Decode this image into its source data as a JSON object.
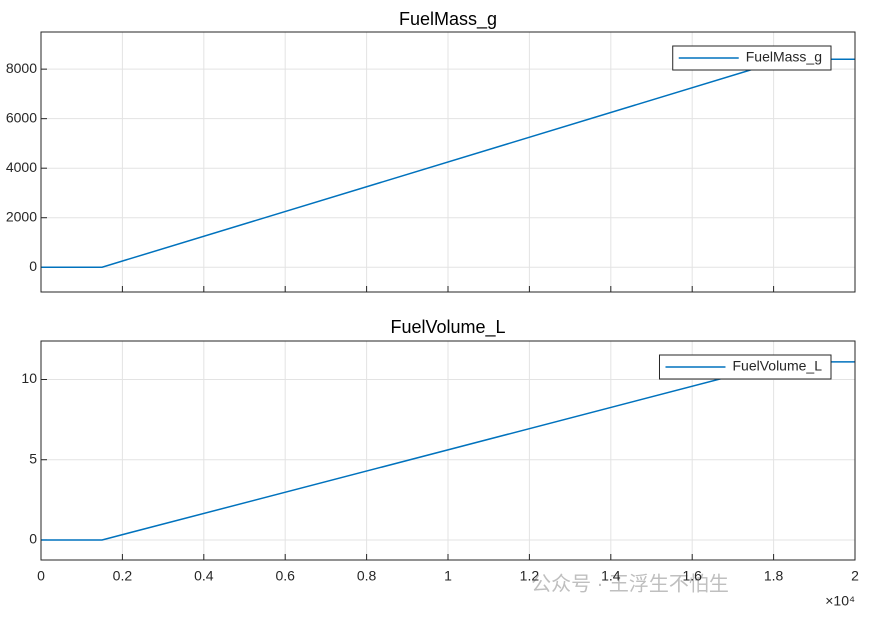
{
  "chart_data": [
    {
      "type": "line",
      "title": "FuelMass_g",
      "x": [
        0,
        0.15,
        1.83,
        2
      ],
      "series": [
        {
          "name": "FuelMass_g",
          "color": "#0072bd",
          "values": [
            0,
            0,
            8400,
            8400
          ]
        }
      ],
      "xlim": [
        0,
        2
      ],
      "xticks": [
        0,
        0.2,
        0.4,
        0.6,
        0.8,
        1,
        1.2,
        1.4,
        1.6,
        1.8,
        2
      ],
      "ylim": [
        -1000,
        9500
      ],
      "yticks": [
        0,
        2000,
        4000,
        6000,
        8000
      ],
      "grid": true,
      "legend": "northeast"
    },
    {
      "type": "line",
      "title": "FuelVolume_L",
      "x": [
        0,
        0.15,
        1.83,
        2
      ],
      "series": [
        {
          "name": "FuelVolume_L",
          "color": "#0072bd",
          "values": [
            0,
            0,
            11.1,
            11.1
          ]
        }
      ],
      "xlim": [
        0,
        2
      ],
      "xticks": [
        0,
        0.2,
        0.4,
        0.6,
        0.8,
        1,
        1.2,
        1.4,
        1.6,
        1.8,
        2
      ],
      "x_exponent_label": "×10⁴",
      "ylim": [
        -1.25,
        12.4
      ],
      "yticks": [
        0,
        5,
        10
      ],
      "grid": true,
      "legend": "northeast"
    }
  ],
  "watermark": "公众号 · 王浮生不怕生"
}
